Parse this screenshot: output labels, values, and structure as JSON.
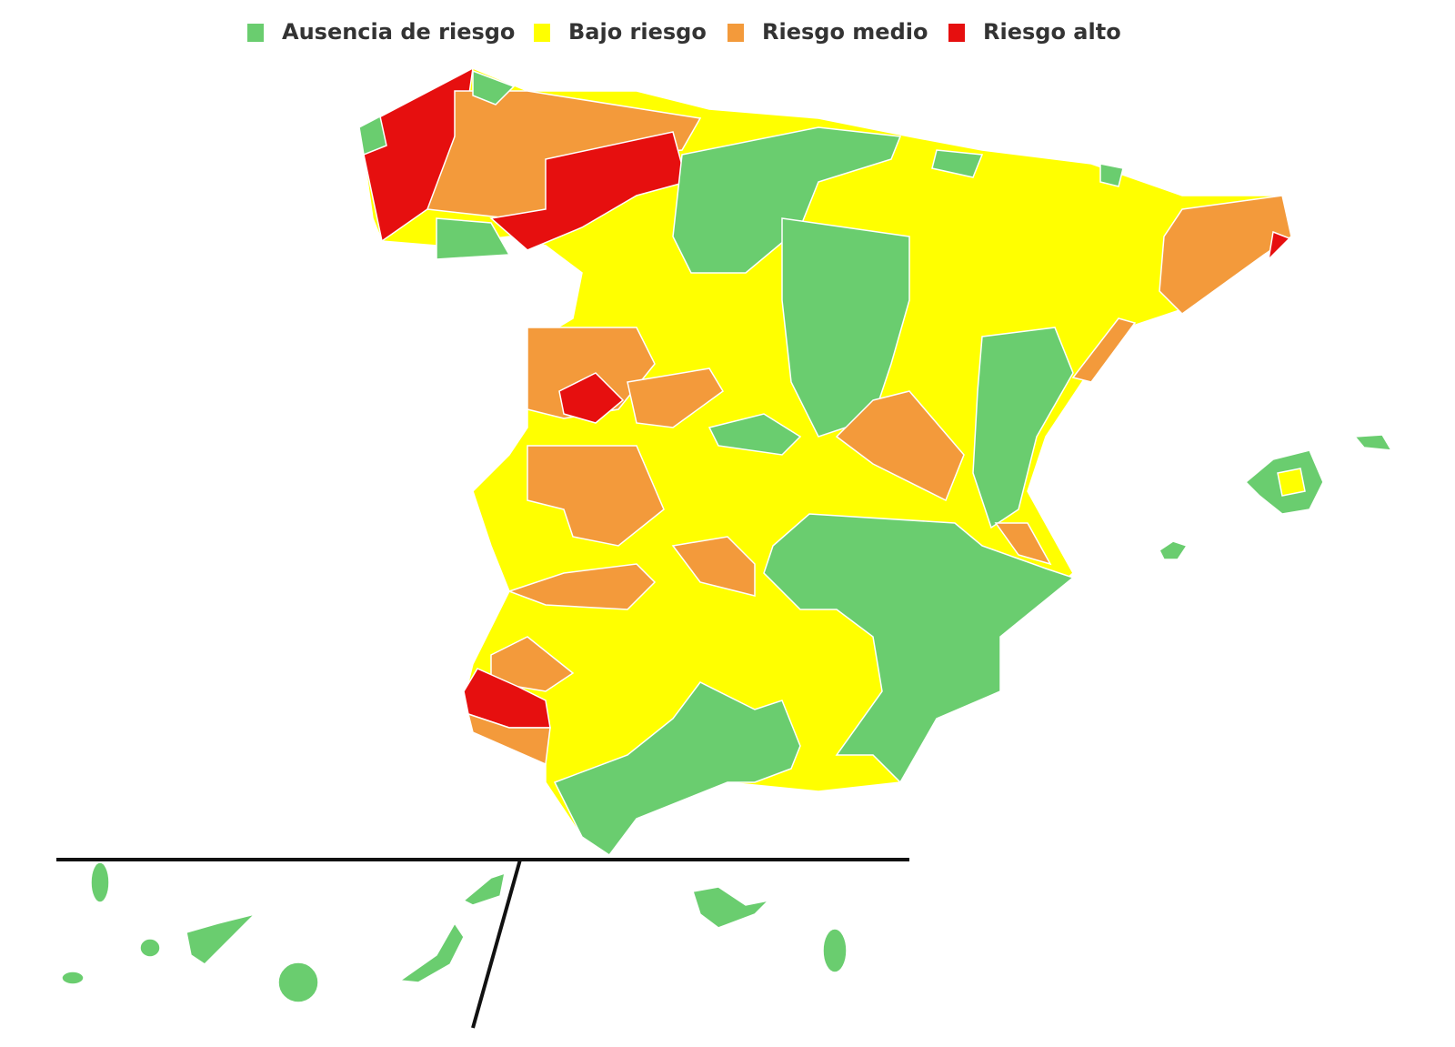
{
  "legend": {
    "items": [
      {
        "label": "Ausencia de riesgo",
        "color": "#6acd6f"
      },
      {
        "label": "Bajo riesgo",
        "color": "#ffff00"
      },
      {
        "label": "Riesgo medio",
        "color": "#f39a3b"
      },
      {
        "label": "Riesgo alto",
        "color": "#e60f0f"
      }
    ]
  }
}
